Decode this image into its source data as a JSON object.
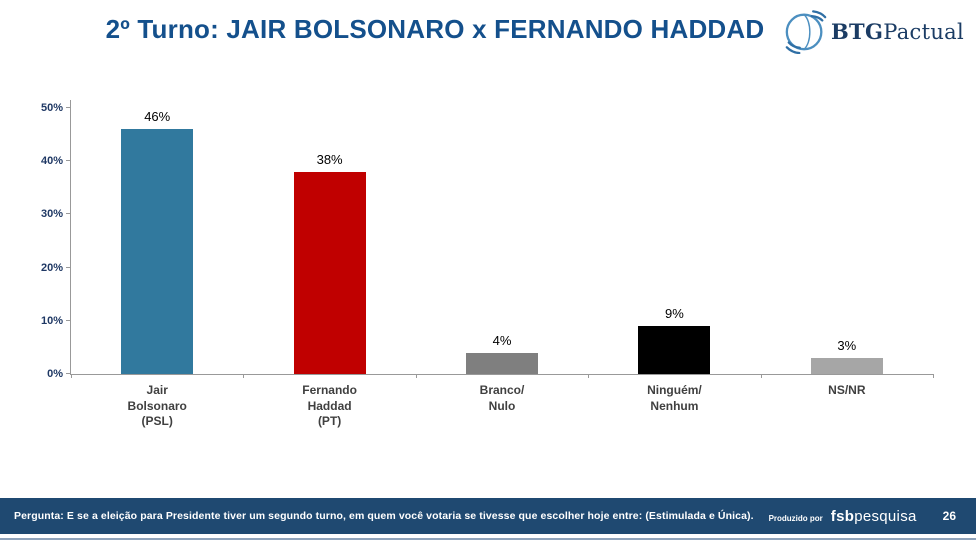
{
  "header": {
    "title": "2º Turno: JAIR BOLSONARO x FERNANDO HADDAD",
    "logo": {
      "icon": "globe-icon",
      "bold": "BTG",
      "regular": "Pactual"
    }
  },
  "chart_data": {
    "type": "bar",
    "title": "2º Turno: JAIR BOLSONARO x FERNANDO HADDAD",
    "categories": [
      "Jair\nBolsonaro\n(PSL)",
      "Fernando\nHaddad\n(PT)",
      "Branco/\nNulo",
      "Ninguém/\nNenhum",
      "NS/NR"
    ],
    "values": [
      46,
      38,
      4,
      9,
      3
    ],
    "value_labels": [
      "46%",
      "38%",
      "4%",
      "9%",
      "3%"
    ],
    "bar_colors": [
      "#31799E",
      "#C00000",
      "#7F7F7F",
      "#000000",
      "#A6A6A6"
    ],
    "xlabel": "",
    "ylabel": "",
    "ylim": [
      0,
      50
    ],
    "y_ticks": [
      "0%",
      "10%",
      "20%",
      "30%",
      "40%",
      "50%"
    ],
    "grid": false,
    "legend": false
  },
  "footer": {
    "question": "Pergunta:  E se a eleição para Presidente tiver um segundo turno, em quem você votaria se tivesse que escolher hoje entre:  (Estimulada e Única).",
    "produced_by": "Produzido por",
    "producer_bold": "fsb",
    "producer_regular": "pesquisa",
    "page_number": "26"
  },
  "colors": {
    "title_blue": "#14508C",
    "footer_bg": "#1F4971",
    "axis_gray": "#999999"
  }
}
